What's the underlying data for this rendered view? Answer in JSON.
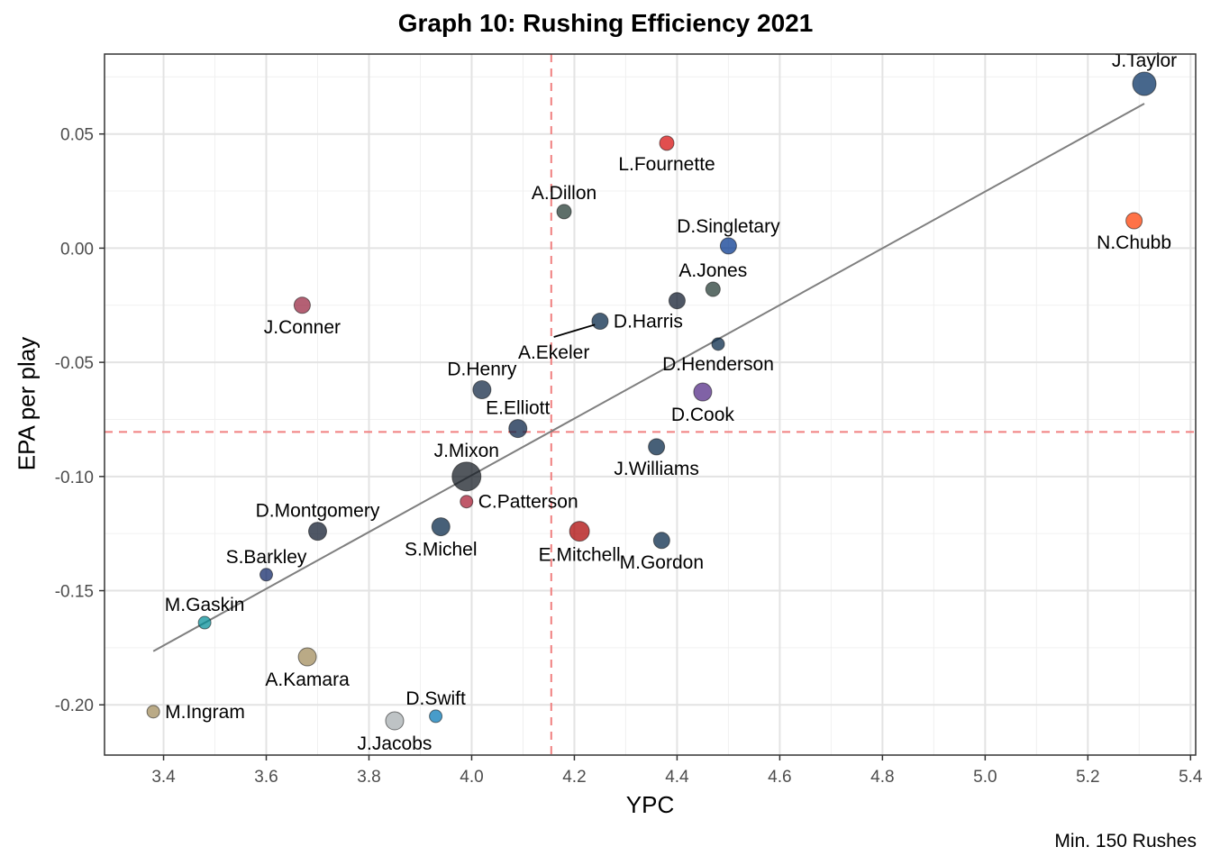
{
  "chart_data": {
    "type": "scatter",
    "title": "Graph 10: Rushing Efficiency 2021",
    "xlabel": "YPC",
    "ylabel": "EPA per play",
    "caption": "Min. 150 Rushes",
    "xlim": [
      3.285,
      5.41
    ],
    "ylim": [
      -0.222,
      0.085
    ],
    "x_ticks": [
      3.4,
      3.6,
      3.8,
      4.0,
      4.2,
      4.4,
      4.6,
      4.8,
      5.0,
      5.2,
      5.4
    ],
    "x_tick_labels": [
      "3.4",
      "3.6",
      "3.8",
      "4.0",
      "4.2",
      "4.4",
      "4.6",
      "4.8",
      "5.0",
      "5.2",
      "5.4"
    ],
    "y_ticks": [
      -0.2,
      -0.15,
      -0.1,
      -0.05,
      0.0,
      0.05
    ],
    "y_tick_labels": [
      "-0.20",
      "-0.15",
      "-0.10",
      "-0.05",
      "0.00",
      "0.05"
    ],
    "grid": true,
    "mean_x": 4.155,
    "mean_y": -0.0805,
    "trend_line": [
      [
        3.38,
        -0.1765
      ],
      [
        5.31,
        0.0633
      ]
    ],
    "points": [
      {
        "name": "J.Taylor",
        "x": 5.31,
        "y": 0.072,
        "size": 13,
        "color": "#002c5f",
        "label_pos": "above"
      },
      {
        "name": "L.Fournette",
        "x": 4.38,
        "y": 0.046,
        "size": 8,
        "color": "#d50a0a",
        "label_pos": "below"
      },
      {
        "name": "A.Dillon",
        "x": 4.18,
        "y": 0.016,
        "size": 8,
        "color": "#203731",
        "label_pos": "above"
      },
      {
        "name": "N.Chubb",
        "x": 5.29,
        "y": 0.012,
        "size": 9,
        "color": "#ff3c00",
        "label_pos": "below"
      },
      {
        "name": "D.Singletary",
        "x": 4.5,
        "y": 0.001,
        "size": 9,
        "color": "#00338d",
        "label_pos": "above"
      },
      {
        "name": "A.Jones",
        "x": 4.47,
        "y": -0.018,
        "size": 8,
        "color": "#203731",
        "label_pos": "above"
      },
      {
        "name": "J.Conner",
        "x": 3.67,
        "y": -0.025,
        "size": 9,
        "color": "#97233f",
        "label_pos": "below"
      },
      {
        "name": "",
        "x": 4.4,
        "y": -0.023,
        "size": 9,
        "color": "#0b162a",
        "label_pos": "none"
      },
      {
        "name": "D.Harris",
        "x": 4.25,
        "y": -0.032,
        "size": 9,
        "color": "#002244",
        "label_pos": "right"
      },
      {
        "name": "D.Henderson",
        "x": 4.48,
        "y": -0.042,
        "size": 7,
        "color": "#002244",
        "label_pos": "below"
      },
      {
        "name": "D.Henry",
        "x": 4.02,
        "y": -0.062,
        "size": 10,
        "color": "#0c2340",
        "label_pos": "above"
      },
      {
        "name": "D.Cook",
        "x": 4.45,
        "y": -0.063,
        "size": 10,
        "color": "#4f2683",
        "label_pos": "below"
      },
      {
        "name": "E.Elliott",
        "x": 4.09,
        "y": -0.079,
        "size": 10,
        "color": "#041e42",
        "label_pos": "above"
      },
      {
        "name": "J.Williams",
        "x": 4.36,
        "y": -0.087,
        "size": 9,
        "color": "#002244",
        "label_pos": "below"
      },
      {
        "name": "J.Mixon",
        "x": 3.99,
        "y": -0.1,
        "size": 16,
        "color": "#101820",
        "label_pos": "above"
      },
      {
        "name": "C.Patterson",
        "x": 3.99,
        "y": -0.111,
        "size": 7,
        "color": "#a71930",
        "label_pos": "right"
      },
      {
        "name": "D.Montgomery",
        "x": 3.7,
        "y": -0.124,
        "size": 10,
        "color": "#0b162a",
        "label_pos": "above"
      },
      {
        "name": "S.Michel",
        "x": 3.94,
        "y": -0.122,
        "size": 10,
        "color": "#002244",
        "label_pos": "below"
      },
      {
        "name": "E.Mitchell",
        "x": 4.21,
        "y": -0.124,
        "size": 11,
        "color": "#aa0000",
        "label_pos": "below"
      },
      {
        "name": "M.Gordon",
        "x": 4.37,
        "y": -0.128,
        "size": 9,
        "color": "#002244",
        "label_pos": "below"
      },
      {
        "name": "S.Barkley",
        "x": 3.6,
        "y": -0.143,
        "size": 7,
        "color": "#0b2265",
        "label_pos": "above"
      },
      {
        "name": "M.Gaskin",
        "x": 3.48,
        "y": -0.164,
        "size": 7,
        "color": "#008e97",
        "label_pos": "above"
      },
      {
        "name": "A.Kamara",
        "x": 3.68,
        "y": -0.179,
        "size": 10,
        "color": "#9f8958",
        "label_pos": "below"
      },
      {
        "name": "M.Ingram",
        "x": 3.38,
        "y": -0.203,
        "size": 7,
        "color": "#9f8958",
        "label_pos": "right"
      },
      {
        "name": "J.Jacobs",
        "x": 3.85,
        "y": -0.207,
        "size": 10,
        "color": "#a5acaf",
        "label_pos": "below"
      },
      {
        "name": "D.Swift",
        "x": 3.93,
        "y": -0.205,
        "size": 7,
        "color": "#0076b6",
        "label_pos": "above"
      }
    ],
    "extra_labels": [
      {
        "name": "A.Ekeler",
        "x": 4.16,
        "y": -0.046,
        "leader_to": [
          4.24,
          -0.0335
        ]
      }
    ]
  }
}
